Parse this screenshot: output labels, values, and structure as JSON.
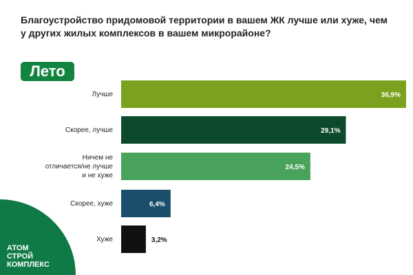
{
  "chart_data": {
    "type": "bar",
    "orientation": "horizontal",
    "title": "Благоустройство придомовой территории в вашем ЖК лучше или хуже, чем у других жилых комплексов в вашем микрорайоне?",
    "badge": "Лето",
    "categories": [
      "Лучше",
      "Скорее, лучше",
      "Ничем не отличается/не лучше и не хуже",
      "Скорее, хуже",
      "Хуже"
    ],
    "values": [
      36.9,
      29.1,
      24.5,
      6.4,
      3.2
    ],
    "value_labels": [
      "36,9%",
      "29,1%",
      "24,5%",
      "6,4%",
      "3,2%"
    ],
    "colors": [
      "#7ba21f",
      "#0c4a2b",
      "#4aa35c",
      "#1b4d6c",
      "#111111"
    ]
  },
  "logo": {
    "lines": [
      "АТОМ",
      "СТРОЙ",
      "КОМПЛЕКС"
    ]
  }
}
